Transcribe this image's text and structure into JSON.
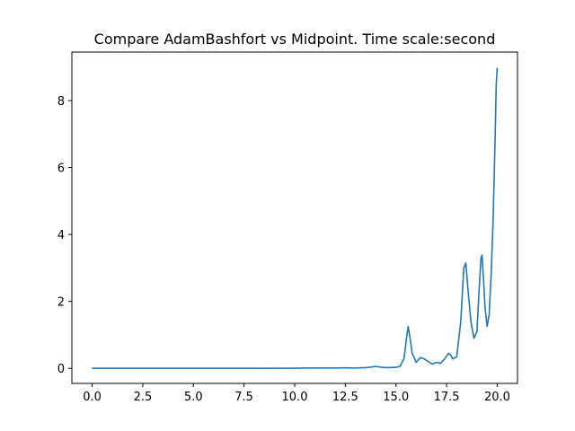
{
  "chart_data": {
    "type": "line",
    "title": "Compare AdamBashfort vs Midpoint. Time scale:second",
    "xlabel": "",
    "ylabel": "",
    "xlim": [
      -1.0,
      21.0
    ],
    "ylim": [
      -0.45,
      9.45
    ],
    "grid": false,
    "legend": "none",
    "x_ticks": [
      "0.0",
      "2.5",
      "5.0",
      "7.5",
      "10.0",
      "12.5",
      "15.0",
      "17.5",
      "20.0"
    ],
    "y_ticks": [
      "0",
      "2",
      "4",
      "6",
      "8"
    ],
    "series": [
      {
        "color": "#1f77b4",
        "x": [
          0,
          2,
          4,
          6,
          8,
          10,
          11,
          12,
          12.5,
          13,
          13.5,
          13.8,
          14.0,
          14.3,
          14.6,
          15.0,
          15.2,
          15.4,
          15.5,
          15.6,
          15.7,
          15.8,
          16.0,
          16.2,
          16.4,
          16.6,
          16.8,
          17.0,
          17.2,
          17.4,
          17.6,
          17.7,
          17.8,
          18.0,
          18.2,
          18.35,
          18.45,
          18.55,
          18.7,
          18.85,
          19.0,
          19.1,
          19.2,
          19.25,
          19.3,
          19.4,
          19.5,
          19.6,
          19.7,
          19.8,
          19.9,
          19.95,
          20.0
        ],
        "y": [
          0,
          0,
          0,
          0,
          0,
          0.005,
          0.01,
          0.01,
          0.015,
          0.01,
          0.02,
          0.04,
          0.06,
          0.03,
          0.02,
          0.03,
          0.06,
          0.3,
          0.8,
          1.25,
          0.9,
          0.45,
          0.18,
          0.32,
          0.28,
          0.2,
          0.13,
          0.18,
          0.15,
          0.28,
          0.45,
          0.4,
          0.28,
          0.35,
          1.4,
          3.0,
          3.15,
          2.4,
          1.4,
          0.9,
          1.1,
          2.3,
          3.3,
          3.38,
          2.9,
          1.8,
          1.25,
          1.6,
          2.8,
          4.5,
          7.0,
          8.5,
          8.98
        ]
      }
    ]
  }
}
